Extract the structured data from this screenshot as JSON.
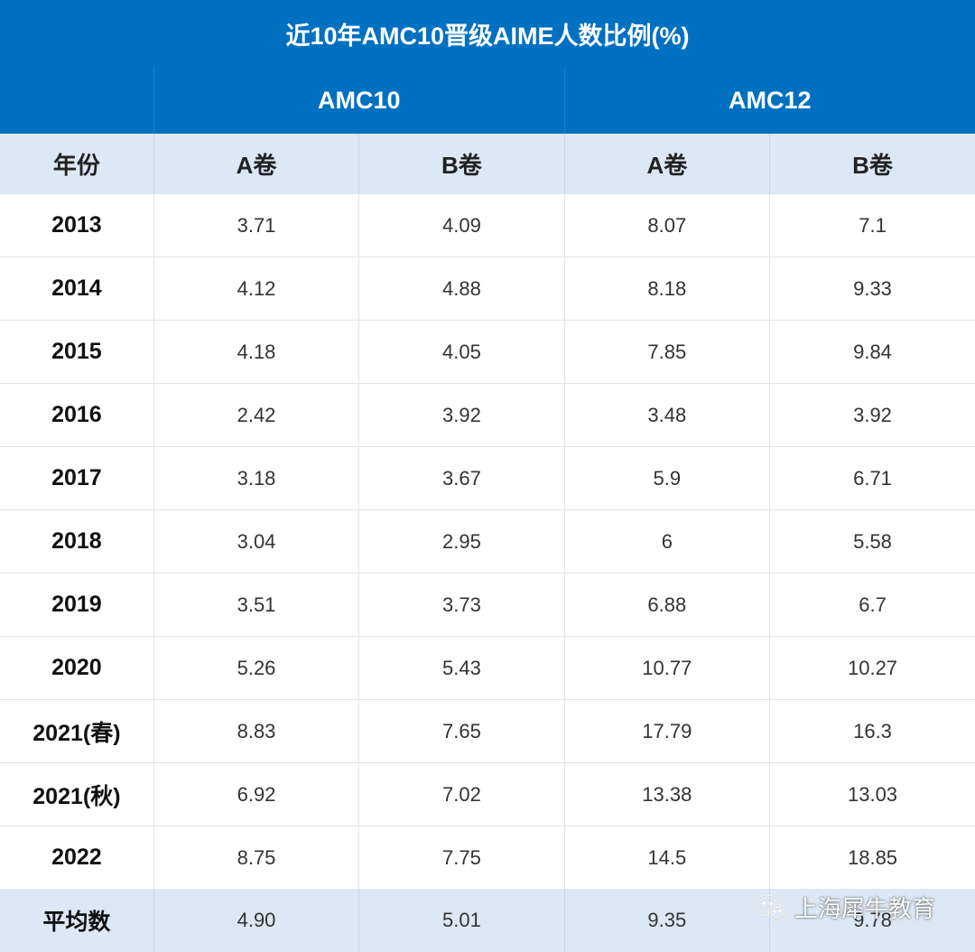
{
  "table": {
    "title": "近10年AMC10晋级AIME人数比例(%)",
    "groups": [
      "AMC10",
      "AMC12"
    ],
    "headers": [
      "年份",
      "A卷",
      "B卷",
      "A卷",
      "B卷"
    ],
    "rows": [
      [
        "2013",
        "3.71",
        "4.09",
        "8.07",
        "7.1"
      ],
      [
        "2014",
        "4.12",
        "4.88",
        "8.18",
        "9.33"
      ],
      [
        "2015",
        "4.18",
        "4.05",
        "7.85",
        "9.84"
      ],
      [
        "2016",
        "2.42",
        "3.92",
        "3.48",
        "3.92"
      ],
      [
        "2017",
        "3.18",
        "3.67",
        "5.9",
        "6.71"
      ],
      [
        "2018",
        "3.04",
        "2.95",
        "6",
        "5.58"
      ],
      [
        "2019",
        "3.51",
        "3.73",
        "6.88",
        "6.7"
      ],
      [
        "2020",
        "5.26",
        "5.43",
        "10.77",
        "10.27"
      ],
      [
        "2021(春)",
        "8.83",
        "7.65",
        "17.79",
        "16.3"
      ],
      [
        "2021(秋)",
        "6.92",
        "7.02",
        "13.38",
        "13.03"
      ],
      [
        "2022",
        "8.75",
        "7.75",
        "14.5",
        "18.85"
      ]
    ],
    "average": [
      "平均数",
      "4.90",
      "5.01",
      "9.35",
      "9.78"
    ]
  },
  "watermark": {
    "text": "上海犀牛教育",
    "icon": "wechat-icon"
  },
  "colors": {
    "header_bg": "#0070c0",
    "subheader_bg": "#dce8f6"
  }
}
